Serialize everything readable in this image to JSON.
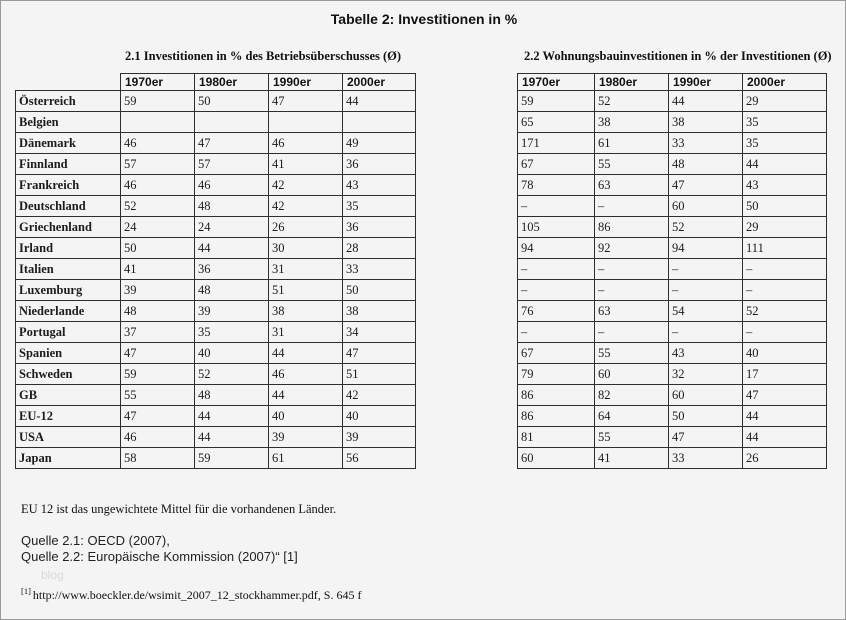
{
  "page": {
    "title": "Tabelle 2: Investitionen in %"
  },
  "tables": {
    "decades": [
      "1970er",
      "1980er",
      "1990er",
      "2000er"
    ],
    "left": {
      "subtitle": "2.1 Investitionen in % des Betriebsüberschusses (Ø)",
      "rows": [
        {
          "country": "Österreich",
          "values": [
            "59",
            "50",
            "47",
            "44"
          ]
        },
        {
          "country": "Belgien",
          "values": [
            "",
            "",
            "",
            ""
          ]
        },
        {
          "country": "Dänemark",
          "values": [
            "46",
            "47",
            "46",
            "49"
          ]
        },
        {
          "country": "Finnland",
          "values": [
            "57",
            "57",
            "41",
            "36"
          ]
        },
        {
          "country": "Frankreich",
          "values": [
            "46",
            "46",
            "42",
            "43"
          ]
        },
        {
          "country": "Deutschland",
          "values": [
            "52",
            "48",
            "42",
            "35"
          ]
        },
        {
          "country": "Griechenland",
          "values": [
            "24",
            "24",
            "26",
            "36"
          ]
        },
        {
          "country": "Irland",
          "values": [
            "50",
            "44",
            "30",
            "28"
          ]
        },
        {
          "country": "Italien",
          "values": [
            "41",
            "36",
            "31",
            "33"
          ]
        },
        {
          "country": "Luxemburg",
          "values": [
            "39",
            "48",
            "51",
            "50"
          ]
        },
        {
          "country": "Niederlande",
          "values": [
            "48",
            "39",
            "38",
            "38"
          ]
        },
        {
          "country": "Portugal",
          "values": [
            "37",
            "35",
            "31",
            "34"
          ]
        },
        {
          "country": "Spanien",
          "values": [
            "47",
            "40",
            "44",
            "47"
          ]
        },
        {
          "country": "Schweden",
          "values": [
            "59",
            "52",
            "46",
            "51"
          ]
        },
        {
          "country": "GB",
          "values": [
            "55",
            "48",
            "44",
            "42"
          ]
        },
        {
          "country": "EU-12",
          "values": [
            "47",
            "44",
            "40",
            "40"
          ]
        },
        {
          "country": "USA",
          "values": [
            "46",
            "44",
            "39",
            "39"
          ]
        },
        {
          "country": "Japan",
          "values": [
            "58",
            "59",
            "61",
            "56"
          ]
        }
      ]
    },
    "right": {
      "subtitle": "2.2 Wohnungsbauinvestitionen in % der Investitionen (Ø)",
      "rows": [
        [
          "59",
          "52",
          "44",
          "29"
        ],
        [
          "65",
          "38",
          "38",
          "35"
        ],
        [
          "171",
          "61",
          "33",
          "35"
        ],
        [
          "67",
          "55",
          "48",
          "44"
        ],
        [
          "78",
          "63",
          "47",
          "43"
        ],
        [
          "–",
          "–",
          "60",
          "50"
        ],
        [
          "105",
          "86",
          "52",
          "29"
        ],
        [
          "94",
          "92",
          "94",
          "111"
        ],
        [
          "–",
          "–",
          "–",
          "–"
        ],
        [
          "–",
          "–",
          "–",
          "–"
        ],
        [
          "76",
          "63",
          "54",
          "52"
        ],
        [
          "–",
          "–",
          "–",
          "–"
        ],
        [
          "67",
          "55",
          "43",
          "40"
        ],
        [
          "79",
          "60",
          "32",
          "17"
        ],
        [
          "86",
          "82",
          "60",
          "47"
        ],
        [
          "86",
          "64",
          "50",
          "44"
        ],
        [
          "81",
          "55",
          "47",
          "44"
        ],
        [
          "60",
          "41",
          "33",
          "26"
        ]
      ]
    }
  },
  "notes": {
    "eu12_note": "EU 12 ist das ungewichtete Mittel für die vorhandenen Länder.",
    "source_1": "Quelle 2.1: OECD (2007),",
    "source_2": "Quelle 2.2: Europäische Kommission (2007)“ [1]",
    "watermark": "blog",
    "footnote_marker": "[1]",
    "footnote_text": "http://www.boeckler.de/wsimit_2007_12_stockhammer.pdf, S. 645 f"
  },
  "colors": {
    "page_background": "#f4f4f4",
    "table_border": "#2e2e2e",
    "text": "#111111",
    "watermark_text": "#d9d9d9"
  }
}
